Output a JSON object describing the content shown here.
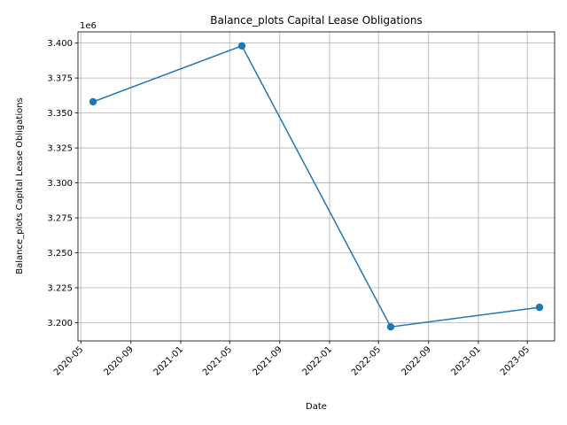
{
  "chart_data": {
    "type": "line",
    "title": "Balance_plots Capital Lease Obligations",
    "xlabel": "Date",
    "ylabel": "Balance_plots Capital Lease Obligations",
    "y_offset_label": "1e6",
    "x": [
      "2020-05-31",
      "2021-05-31",
      "2022-05-31",
      "2023-05-31"
    ],
    "series": [
      {
        "values": [
          3358000,
          3398000,
          3197000,
          3211000
        ],
        "color": "#1f77b4",
        "marker": "circle"
      }
    ],
    "xlim": [
      "2020-04-24",
      "2023-07-07"
    ],
    "ylim": [
      3187000,
      3408000
    ],
    "x_ticks": [
      "2020-05",
      "2020-09",
      "2021-01",
      "2021-05",
      "2021-09",
      "2022-01",
      "2022-05",
      "2022-09",
      "2023-01",
      "2023-05"
    ],
    "x_tick_dates": [
      "2020-05-01",
      "2020-09-01",
      "2021-01-01",
      "2021-05-01",
      "2021-09-01",
      "2022-01-01",
      "2022-05-01",
      "2022-09-01",
      "2023-01-01",
      "2023-05-01"
    ],
    "y_ticks": [
      "3.200",
      "3.225",
      "3.250",
      "3.275",
      "3.300",
      "3.325",
      "3.350",
      "3.375",
      "3.400"
    ],
    "y_tick_values": [
      3200000,
      3225000,
      3250000,
      3275000,
      3300000,
      3325000,
      3350000,
      3375000,
      3400000
    ],
    "x_tick_rotation": 45,
    "grid": true,
    "legend": "none"
  }
}
